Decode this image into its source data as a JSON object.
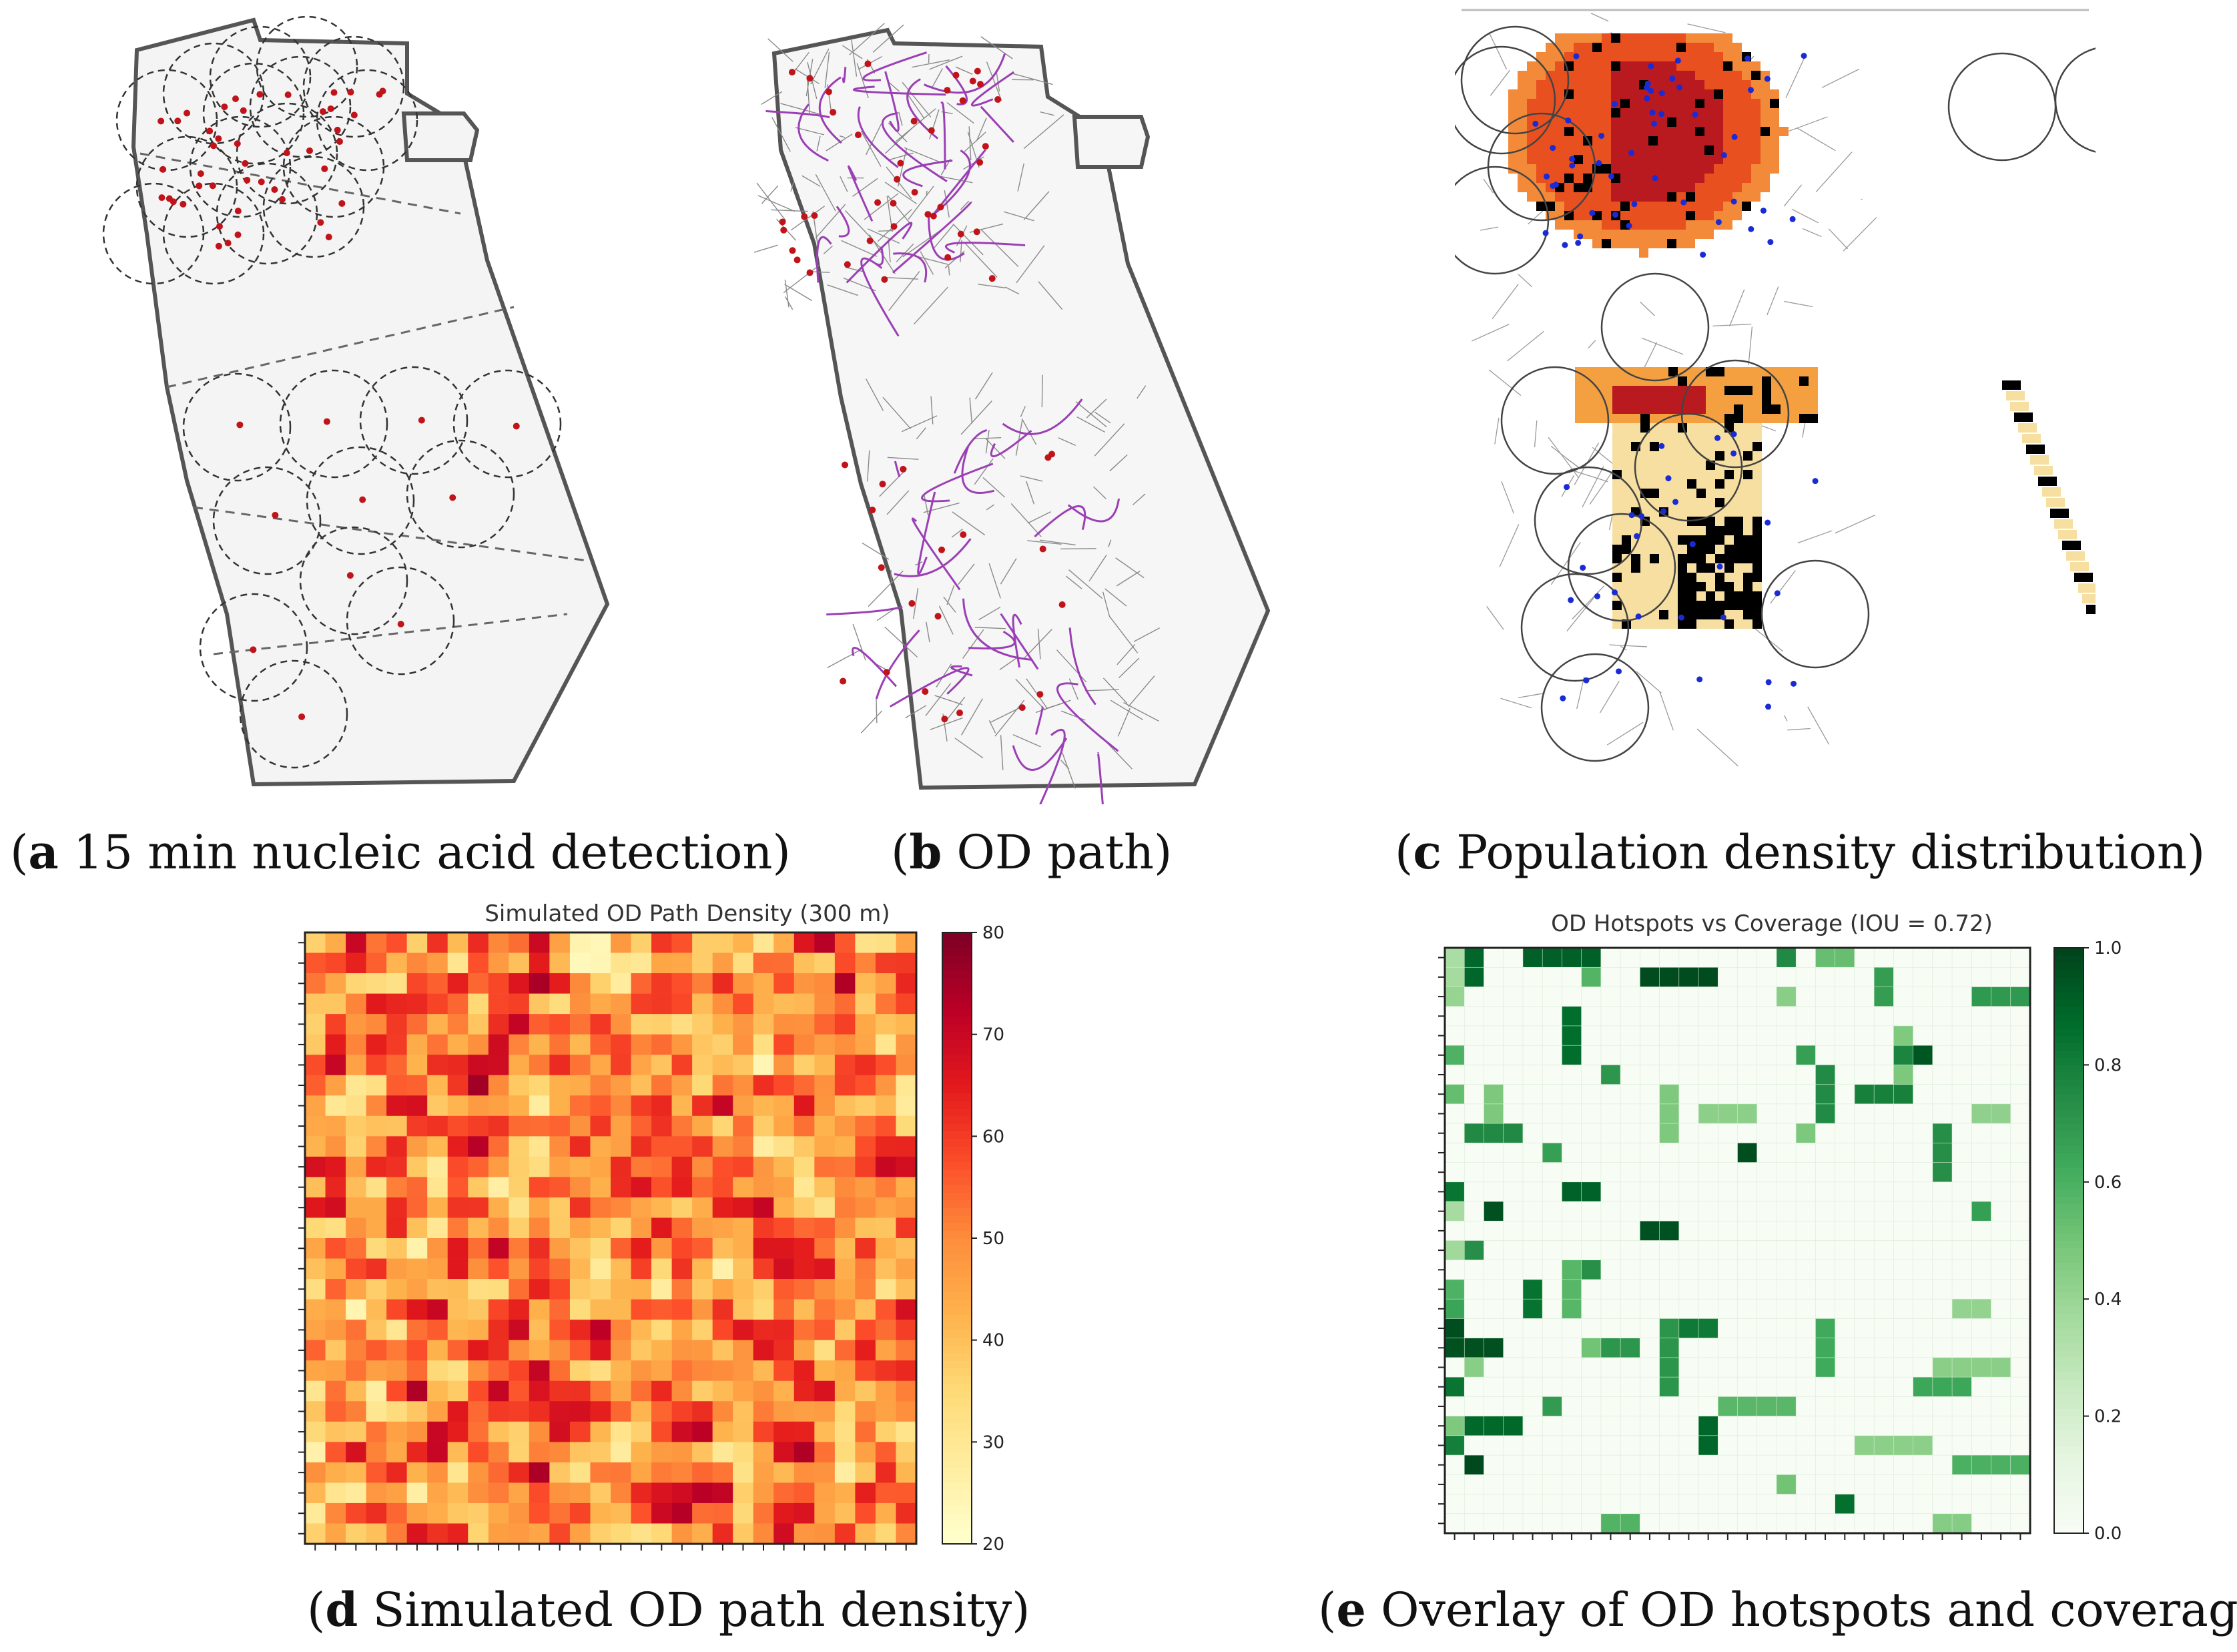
{
  "captions": {
    "a": {
      "letter": "a",
      "text": " 15 min nucleic acid detection"
    },
    "b": {
      "letter": "b",
      "text": " OD path"
    },
    "c": {
      "letter": "c",
      "text": " Population density distribution"
    },
    "d": {
      "letter": "d",
      "text": " Simulated OD path density"
    },
    "e": {
      "letter": "e",
      "text": " Overlay of OD hotspots and coverage"
    }
  },
  "colors": {
    "map_outline": "#555555",
    "map_fill": "#f4f4f4",
    "circle": "#333333",
    "site_dot": "#c0141a",
    "od_path": "#9b3fb5",
    "pop_dot": "#1a2bd6"
  },
  "chart_data": [
    {
      "id": "d",
      "type": "heatmap",
      "title": "Simulated OD Path Density (300 m)",
      "xlabel": "",
      "ylabel": "",
      "rows": 30,
      "cols": 30,
      "colormap": "YlOrRd",
      "vmin": 20,
      "vmax": 80,
      "colorbar_ticks": [
        "20",
        "30",
        "40",
        "50",
        "60",
        "70",
        "80"
      ],
      "note": "random simulated grid; values approximated"
    },
    {
      "id": "e",
      "type": "heatmap",
      "title": "OD Hotspots vs Coverage (IOU = 0.72)",
      "xlabel": "",
      "ylabel": "",
      "rows": 30,
      "cols": 30,
      "colormap": "Greens",
      "vmin": 0.0,
      "vmax": 1.0,
      "iou": 0.72,
      "colorbar_ticks": [
        "0.0",
        "0.2",
        "0.4",
        "0.6",
        "0.8",
        "1.0"
      ],
      "note": "binary-like overlay grid; values approximated"
    }
  ]
}
